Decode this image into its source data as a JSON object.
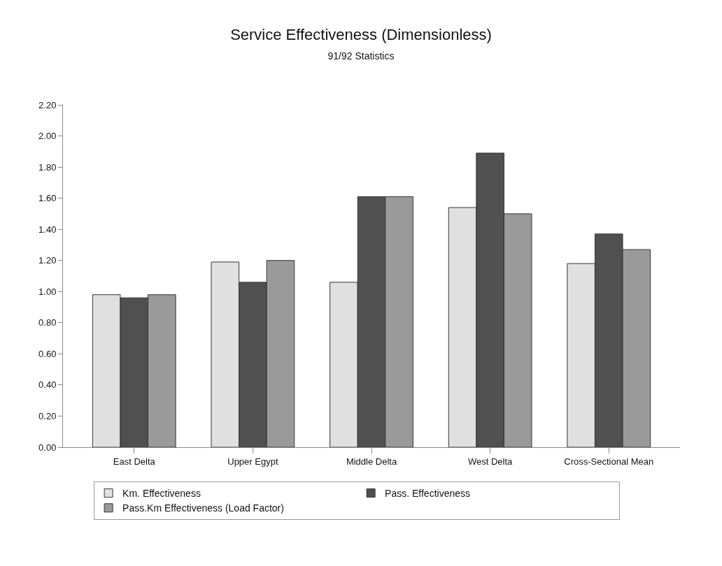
{
  "chart_data": {
    "type": "bar",
    "title": "Service Effectiveness (Dimensionless)",
    "subtitle": "91/92 Statistics",
    "categories": [
      "East Delta",
      "Upper Egypt",
      "Middle Delta",
      "West Delta",
      "Cross-Sectional Mean"
    ],
    "series": [
      {
        "name": "Km. Effectiveness",
        "color": "#e0e0e0",
        "values": [
          0.98,
          1.19,
          1.06,
          1.54,
          1.18
        ]
      },
      {
        "name": "Pass. Effectiveness",
        "color": "#505050",
        "values": [
          0.96,
          1.06,
          1.61,
          1.89,
          1.37
        ]
      },
      {
        "name": "Pass.Km Effectiveness (Load Factor)",
        "color": "#9a9a9a",
        "values": [
          0.98,
          1.2,
          1.61,
          1.5,
          1.27
        ]
      }
    ],
    "ylim": [
      0,
      2.2
    ],
    "yticks": [
      {
        "value": 0,
        "label": "0.00"
      },
      {
        "value": 0.2,
        "label": "0.20"
      },
      {
        "value": 0.4,
        "label": "0.40"
      },
      {
        "value": 0.6,
        "label": "0.60"
      },
      {
        "value": 0.8,
        "label": "0.80"
      },
      {
        "value": 1.0,
        "label": "1.00"
      },
      {
        "value": 1.2,
        "label": "1.20"
      },
      {
        "value": 1.4,
        "label": "1.40"
      },
      {
        "value": 1.6,
        "label": "1.60"
      },
      {
        "value": 1.8,
        "label": "1.80"
      },
      {
        "value": 2.0,
        "label": "2.00"
      },
      {
        "value": 2.2,
        "label": "2.20"
      }
    ],
    "legend": "bottom"
  }
}
